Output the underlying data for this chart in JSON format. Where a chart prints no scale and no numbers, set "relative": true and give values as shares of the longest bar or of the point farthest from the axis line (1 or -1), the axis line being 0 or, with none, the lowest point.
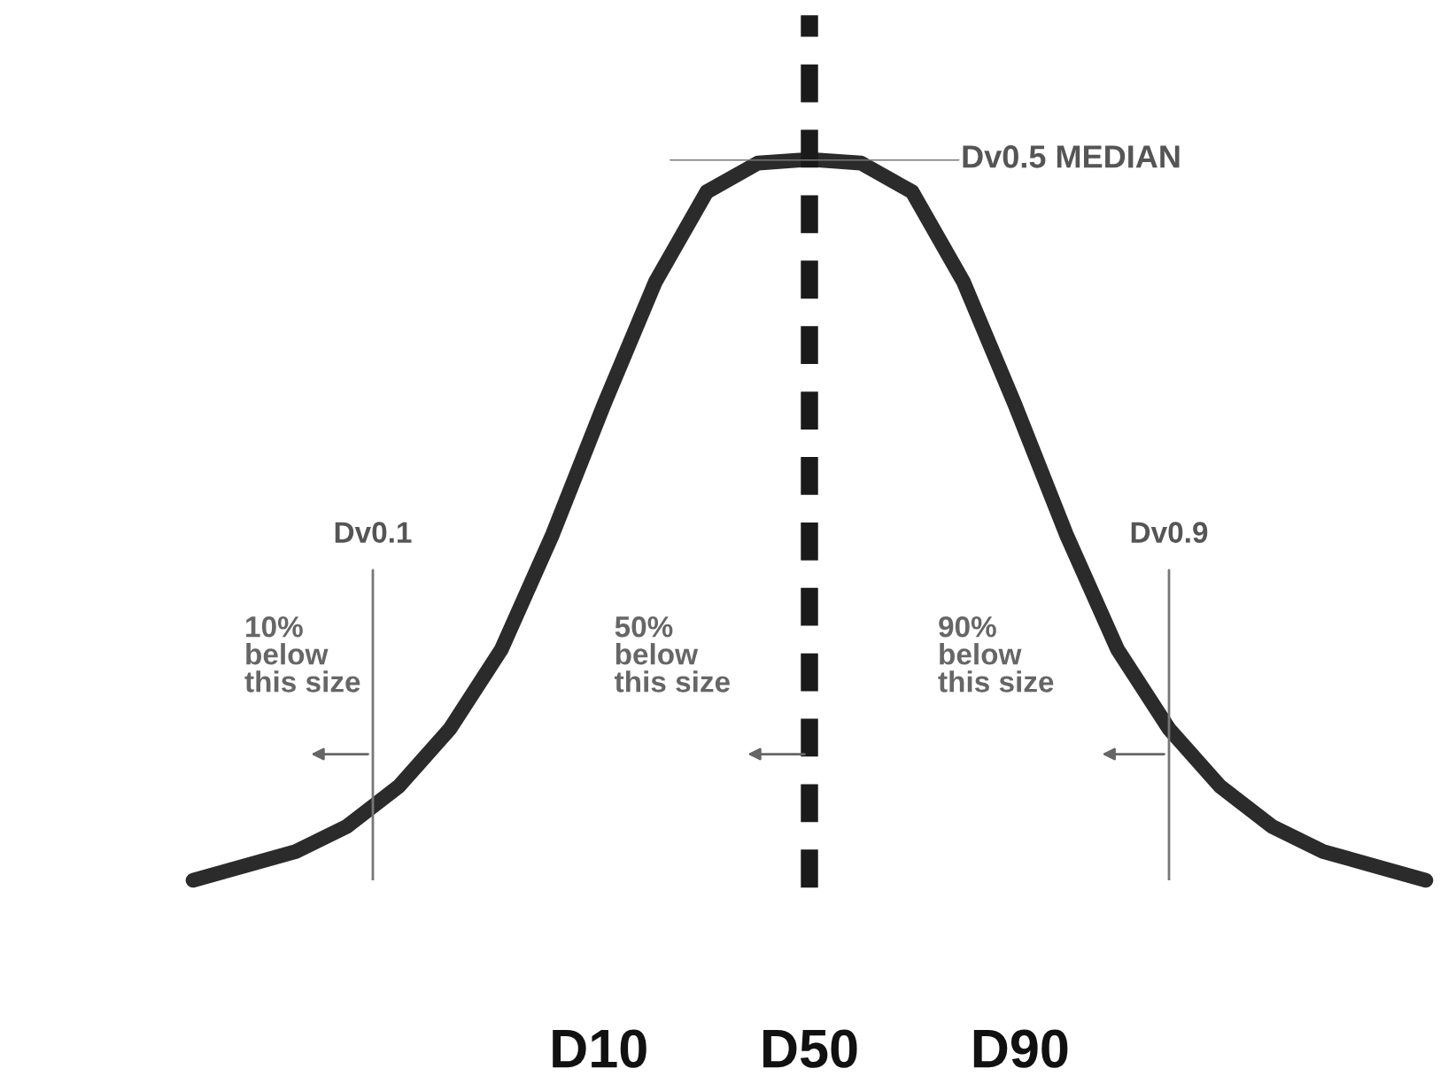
{
  "chart_data": {
    "type": "line",
    "relative": true,
    "categories": [
      null,
      null,
      null,
      null,
      null,
      null,
      null,
      null,
      null,
      null,
      null,
      null,
      null,
      null,
      null,
      null,
      null,
      null,
      null,
      null,
      null,
      null,
      null,
      null,
      null
    ],
    "series": [
      {
        "color": "#2b2b2b",
        "values": [
          0,
          0.02,
          0.04,
          0.075,
          0.13,
          0.21,
          0.32,
          0.48,
          0.66,
          0.83,
          0.955,
          0.995,
          1,
          0.995,
          0.955,
          0.83,
          0.66,
          0.48,
          0.32,
          0.21,
          0.13,
          0.075,
          0.04,
          0.02,
          0
        ]
      }
    ],
    "annotations": [
      "Dv0.5 MEDIAN",
      "Dv0.1",
      "Dv0.9",
      "10%\nbelow\nthis size",
      "50%\nbelow\nthis size",
      "90%\nbelow\nthis size",
      "D10",
      "D50",
      "D90"
    ]
  }
}
